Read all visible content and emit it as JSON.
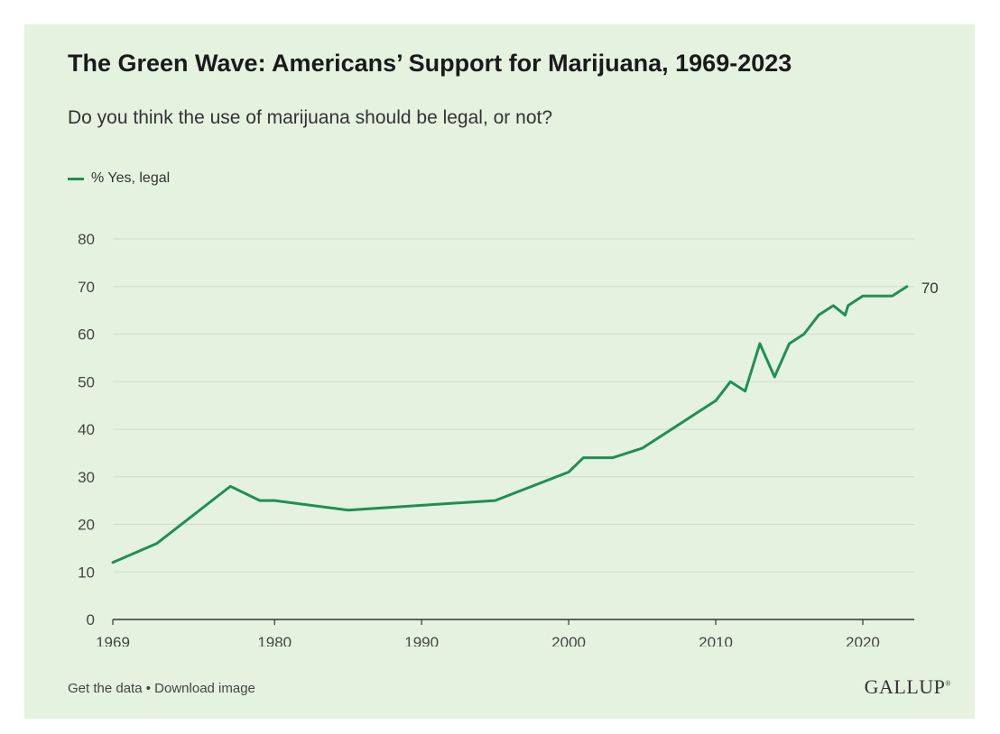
{
  "header": {
    "title": "The Green Wave: Americans’ Support for Marijuana, 1969-2023",
    "subtitle": "Do you think the use of marijuana should be legal, or not?"
  },
  "colors": {
    "card_background": "#e5f2e0",
    "series_line": "#1f8f53",
    "grid": "#cfdccb",
    "axis": "#333333"
  },
  "footer": {
    "get_data_label": "Get the data",
    "separator": "•",
    "download_label": "Download image",
    "brand": "GALLUP"
  },
  "chart_data": {
    "type": "line",
    "title": "The Green Wave: Americans’ Support for Marijuana, 1969-2023",
    "subtitle": "Do you think the use of marijuana should be legal, or not?",
    "xlabel": "",
    "ylabel": "",
    "xlim": [
      1969,
      2023.5
    ],
    "ylim": [
      0,
      80
    ],
    "x_ticks": [
      1969,
      1980,
      1990,
      2000,
      2010,
      2020
    ],
    "y_ticks": [
      0,
      10,
      20,
      30,
      40,
      50,
      60,
      70,
      80
    ],
    "grid": true,
    "legend_position": "top-left",
    "end_label": "70",
    "series": [
      {
        "name": "% Yes, legal",
        "x": [
          1969,
          1972,
          1977,
          1979,
          1980,
          1985,
          1995,
          2000,
          2001,
          2003,
          2005,
          2009,
          2010,
          2011,
          2012,
          2013,
          2014,
          2015,
          2016,
          2017,
          2018,
          2018.8,
          2019,
          2020,
          2021,
          2022,
          2023
        ],
        "values": [
          12,
          16,
          28,
          25,
          25,
          23,
          25,
          31,
          34,
          34,
          36,
          44,
          46,
          50,
          48,
          58,
          51,
          58,
          60,
          64,
          66,
          64,
          66,
          68,
          68,
          68,
          70
        ]
      }
    ]
  }
}
